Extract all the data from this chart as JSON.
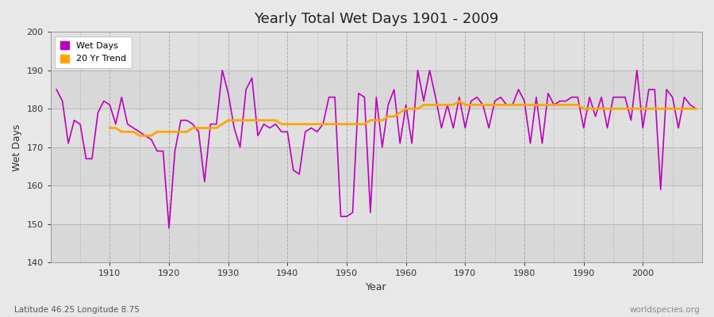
{
  "title": "Yearly Total Wet Days 1901 - 2009",
  "xlabel": "Year",
  "ylabel": "Wet Days",
  "subtitle": "Latitude 46.25 Longitude 8.75",
  "watermark": "worldspecies.org",
  "ylim": [
    140,
    200
  ],
  "xlim": [
    1900,
    2010
  ],
  "years": [
    1901,
    1902,
    1903,
    1904,
    1905,
    1906,
    1907,
    1908,
    1909,
    1910,
    1911,
    1912,
    1913,
    1914,
    1915,
    1916,
    1917,
    1918,
    1919,
    1920,
    1921,
    1922,
    1923,
    1924,
    1925,
    1926,
    1927,
    1928,
    1929,
    1930,
    1931,
    1932,
    1933,
    1934,
    1935,
    1936,
    1937,
    1938,
    1939,
    1940,
    1941,
    1942,
    1943,
    1944,
    1945,
    1946,
    1947,
    1948,
    1949,
    1950,
    1951,
    1952,
    1953,
    1954,
    1955,
    1956,
    1957,
    1958,
    1959,
    1960,
    1961,
    1962,
    1963,
    1964,
    1965,
    1966,
    1967,
    1968,
    1969,
    1970,
    1971,
    1972,
    1973,
    1974,
    1975,
    1976,
    1977,
    1978,
    1979,
    1980,
    1981,
    1982,
    1983,
    1984,
    1985,
    1986,
    1987,
    1988,
    1989,
    1990,
    1991,
    1992,
    1993,
    1994,
    1995,
    1996,
    1997,
    1998,
    1999,
    2000,
    2001,
    2002,
    2003,
    2004,
    2005,
    2006,
    2007,
    2008,
    2009
  ],
  "wet_days": [
    185,
    182,
    171,
    177,
    176,
    167,
    167,
    179,
    182,
    181,
    176,
    183,
    176,
    175,
    174,
    173,
    172,
    169,
    169,
    149,
    169,
    177,
    177,
    176,
    174,
    161,
    176,
    176,
    190,
    184,
    175,
    170,
    185,
    188,
    173,
    176,
    175,
    176,
    174,
    174,
    164,
    163,
    174,
    175,
    174,
    176,
    183,
    183,
    152,
    152,
    153,
    184,
    183,
    153,
    183,
    170,
    181,
    185,
    171,
    181,
    171,
    190,
    182,
    190,
    183,
    175,
    181,
    175,
    183,
    175,
    182,
    183,
    181,
    175,
    182,
    183,
    181,
    181,
    185,
    182,
    171,
    183,
    171,
    184,
    181,
    182,
    182,
    183,
    183,
    175,
    183,
    178,
    183,
    175,
    183,
    183,
    183,
    177,
    190,
    175,
    185,
    185,
    159,
    185,
    183,
    175,
    183,
    181,
    180
  ],
  "trend": [
    null,
    null,
    null,
    null,
    null,
    null,
    null,
    null,
    null,
    175,
    175,
    174,
    174,
    174,
    173,
    173,
    173,
    174,
    174,
    174,
    174,
    174,
    174,
    175,
    175,
    175,
    175,
    175,
    176,
    177,
    177,
    177,
    177,
    177,
    177,
    177,
    177,
    177,
    176,
    176,
    176,
    176,
    176,
    176,
    176,
    176,
    176,
    176,
    176,
    176,
    176,
    176,
    176,
    177,
    177,
    177,
    178,
    178,
    179,
    180,
    180,
    180,
    181,
    181,
    181,
    181,
    181,
    181,
    182,
    181,
    181,
    181,
    181,
    181,
    181,
    181,
    181,
    181,
    181,
    181,
    181,
    181,
    181,
    181,
    181,
    181,
    181,
    181,
    181,
    180,
    180,
    180,
    180,
    180,
    180,
    180,
    180,
    180,
    180,
    180,
    180,
    180,
    180,
    180,
    180,
    180,
    180,
    180,
    180
  ],
  "wet_days_color": "#BB00BB",
  "trend_color": "#FFA500",
  "bg_color": "#E8E8E8",
  "plot_bg_light": "#DCDCDC",
  "plot_bg_dark": "#C8C8C8",
  "grid_color": "#BBBBBB",
  "legend_wet": "Wet Days",
  "legend_trend": "20 Yr Trend"
}
